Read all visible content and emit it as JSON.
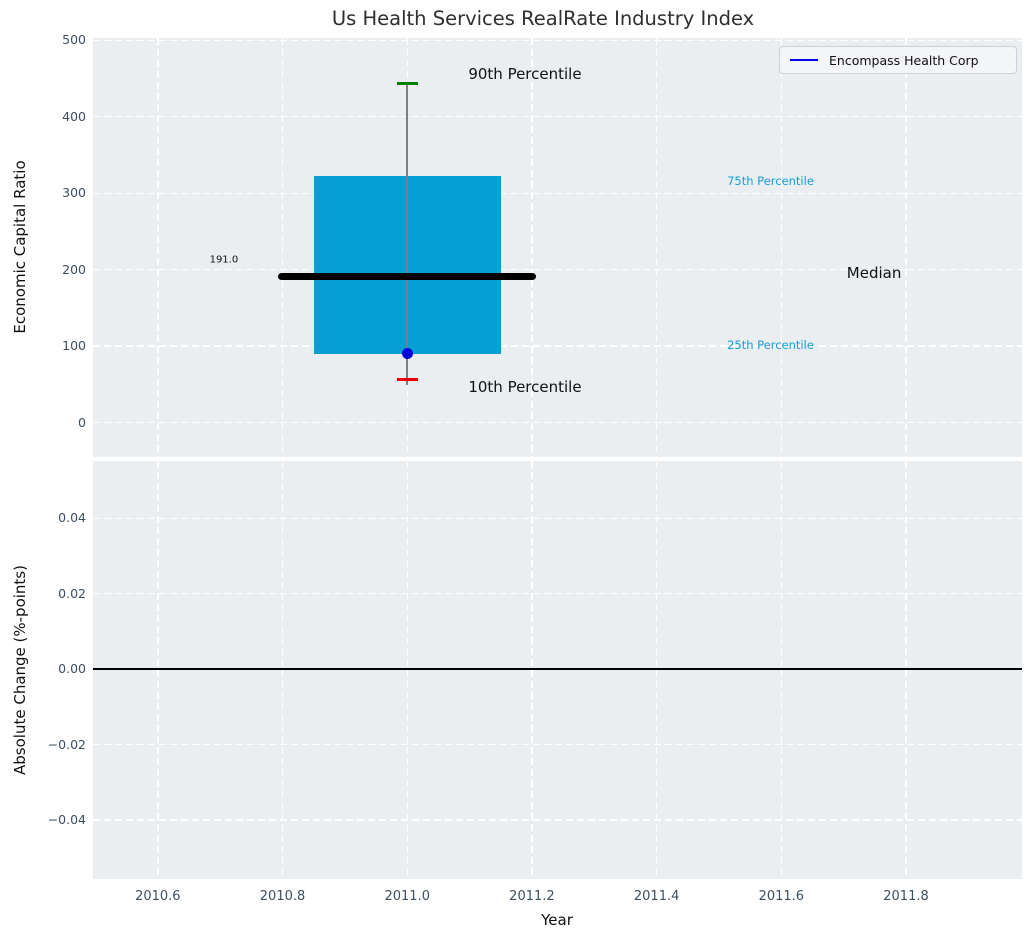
{
  "title": "Us Health Services RealRate Industry Index",
  "legend": {
    "items": [
      {
        "label": "Encompass Health Corp",
        "color": "#0000e0"
      }
    ]
  },
  "x_axis": {
    "label": "Year",
    "lim": [
      2010.496,
      2011.986
    ],
    "ticks": [
      2010.6,
      2010.8,
      2011.0,
      2011.2,
      2011.4,
      2011.6,
      2011.8
    ],
    "tick_labels": [
      "2010.6",
      "2010.8",
      "2011.0",
      "2011.2",
      "2011.4",
      "2011.6",
      "2011.8"
    ]
  },
  "colors": {
    "axes_bg": "#eaeef0",
    "grid": "#ffffff",
    "tick_label": "#3d4f63",
    "axis_label": "#111111",
    "title": "#2e2e2e",
    "box_fill": "#089fd4",
    "median": "#000000",
    "whisker": "#7f7f7f",
    "p90_cap": "#008000",
    "p10_cap": "#e60000",
    "company_point": "#0000dd"
  },
  "chart_data": [
    {
      "type": "boxplot",
      "title": "Us Health Services RealRate Industry Index",
      "ylabel": "Economic Capital Ratio",
      "ylim": [
        -45,
        503
      ],
      "yticks": [
        0,
        100,
        200,
        300,
        400,
        500
      ],
      "ytick_labels": [
        "0",
        "100",
        "200",
        "300",
        "400",
        "500"
      ],
      "grid": true,
      "legend_position": "upper right",
      "box": {
        "x": 2011.0,
        "p90": 444,
        "p75": 322,
        "median": 191,
        "p25": 90,
        "p10": 56,
        "box_halfwidth": 0.15,
        "median_halfwidth": 0.207,
        "cap_halfwidth": 0.017
      },
      "median_value_label": "191.0",
      "company_point": {
        "name": "Encompass Health Corp",
        "x": 2011.0,
        "value": 91
      },
      "annotations": [
        {
          "id": "p90-label",
          "text": "90th Percentile",
          "x": 2011.098,
          "y": 456,
          "color": "#111111",
          "size": 15
        },
        {
          "id": "p10-label",
          "text": "10th Percentile",
          "x": 2011.098,
          "y": 46,
          "color": "#111111",
          "size": 15
        },
        {
          "id": "p75-label",
          "text": "75th Percentile",
          "x": 2011.513,
          "y": 316,
          "color": "#169dd5",
          "size": 11.5
        },
        {
          "id": "p25-label",
          "text": "25th Percentile",
          "x": 2011.513,
          "y": 101,
          "color": "#169dd5",
          "size": 11.5
        },
        {
          "id": "median-label",
          "text": "Median",
          "x": 2011.705,
          "y": 195,
          "color": "#111111",
          "size": 15
        },
        {
          "id": "median-value-label",
          "text": "191.0",
          "x": 2010.683,
          "y": 212,
          "color": "#111111",
          "size": 10
        }
      ]
    },
    {
      "type": "line",
      "ylabel": "Absolute Change (%-points)",
      "ylim": [
        -0.0556,
        0.0552
      ],
      "yticks": [
        0.04,
        0.02,
        0.0,
        -0.02,
        -0.04
      ],
      "ytick_labels": [
        "0.04",
        "0.02",
        "0.00",
        "−0.02",
        "−0.04"
      ],
      "grid": true,
      "zero_line": 0.0,
      "series": []
    }
  ]
}
